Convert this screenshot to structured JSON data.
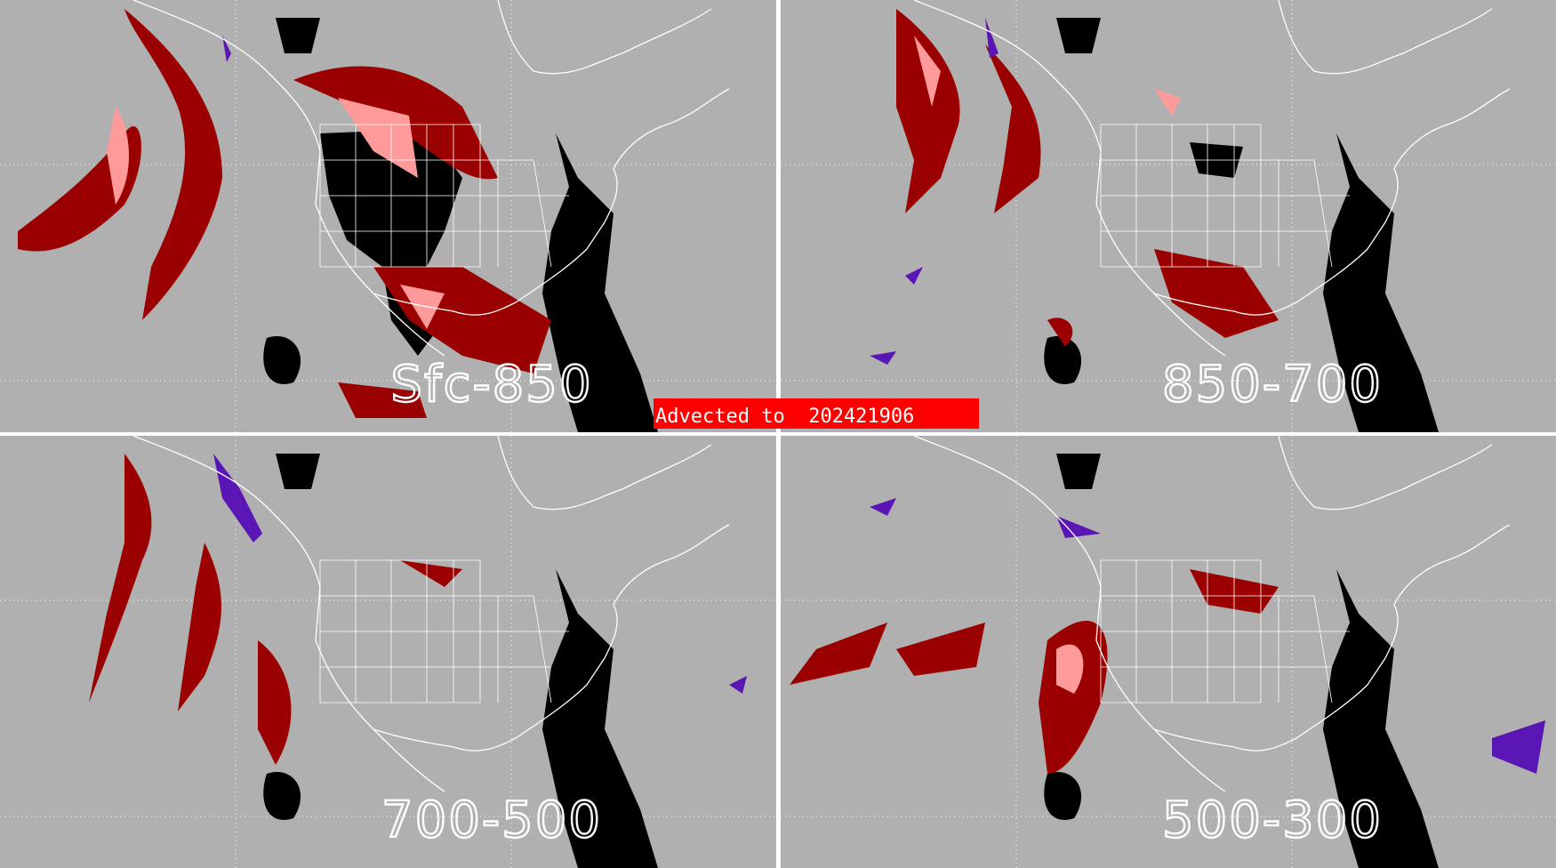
{
  "banner": {
    "label": "Advected to",
    "value": "202421906"
  },
  "panels": [
    {
      "label": "Sfc-850"
    },
    {
      "label": "850-700"
    },
    {
      "label": "700-500"
    },
    {
      "label": "500-300"
    }
  ],
  "colors": {
    "background": "#b0b0b0",
    "dark_red": "#9a0000",
    "pink": "#ff9a9a",
    "black": "#000000",
    "purple": "#5a16b4",
    "borders": "#ffffff",
    "banner": "#ff0000"
  }
}
